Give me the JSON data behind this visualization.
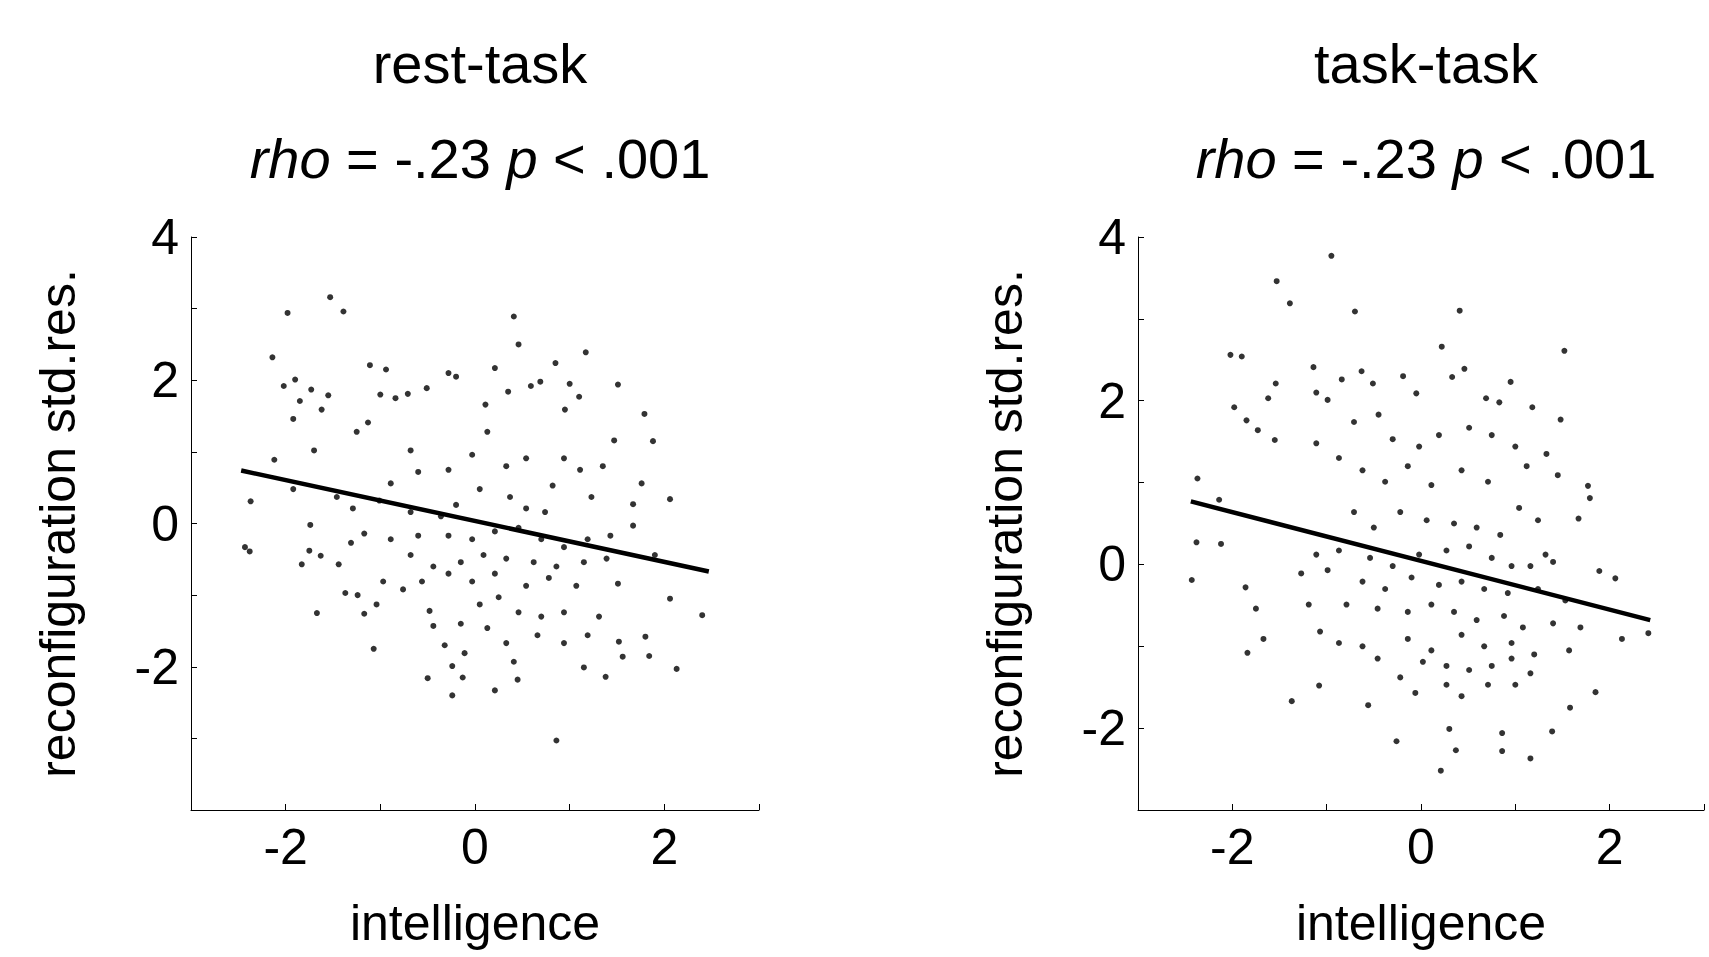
{
  "chart_data": [
    {
      "type": "scatter",
      "title": "rest-task",
      "subtitle": "rho = -.23 p < .001",
      "xlabel": "intelligence",
      "ylabel": "reconfiguration std.res.",
      "marker": "circle",
      "xlim": [
        -3,
        3
      ],
      "xticks": [
        {
          "value": -3,
          "label": null
        },
        -2,
        {
          "value": -1,
          "label": null
        },
        0,
        {
          "value": 1,
          "label": null
        },
        2,
        {
          "value": 3,
          "label": null
        }
      ],
      "ylim": [
        -4,
        4
      ],
      "yticks": [
        {
          "value": -4,
          "label": null
        },
        {
          "value": -3,
          "label": null
        },
        -2,
        {
          "value": -1,
          "label": null
        },
        0,
        {
          "value": 1,
          "label": null
        },
        2,
        {
          "value": 3,
          "label": null
        },
        4
      ],
      "series": [
        {
          "color": "#000000",
          "x": [
            -1.53,
            -1.98,
            -1.39,
            0.41,
            0.46,
            -2.14,
            1.17,
            0.85,
            -1.11,
            -0.94,
            -2.02,
            -1.9,
            -1.85,
            -1.73,
            -1.55,
            -1.62,
            -1.92,
            -2.12,
            -2.37,
            -2.43,
            -2.38,
            -1.92,
            -1.7,
            -1.74,
            -1.75,
            -1.83,
            -1.67,
            -1.63,
            -1.44,
            -1.37,
            -1.24,
            -1.07,
            -1.17,
            -1.04,
            -0.5,
            -0.24,
            -0.13,
            -0.24,
            0.21,
            0.86,
            0.41,
            0.45,
            1.15,
            1.38,
            2.13,
            2.4,
            2.06,
            2.06,
            1.88,
            1.79,
            1.51,
            1.47,
            1.84,
            1.8,
            1.56,
            1.52,
            1.9,
            1.76,
            1.67,
            1.67,
            1.0,
            1.1,
            0.95,
            0.59,
            0.69,
            0.35,
            0.21,
            0.11,
            -0.2,
            -0.28,
            -0.51,
            -0.71,
            -1.0,
            -1.25,
            -1.13,
            -0.68,
            -0.84,
            -0.89,
            -0.6,
            -0.28,
            -0.03,
            0.13,
            0.33,
            0.54,
            0.82,
            0.94,
            1.11,
            1.35,
            1.23,
            -0.2,
            0.05,
            0.37,
            0.54,
            0.74,
            -0.36,
            -0.68,
            -1.01,
            -1.29,
            -1.17,
            -0.89,
            -0.6,
            -0.28,
            -0.03,
            0.21,
            0.46,
            0.7,
            0.94,
            1.19,
            1.43,
            -0.68,
            -0.44,
            -0.15,
            0.09,
            0.33,
            0.62,
            0.86,
            1.15,
            1.39,
            -0.56,
            -0.28,
            -0.03,
            0.21,
            0.54,
            0.78,
            1.07,
            1.51,
            -0.48,
            -0.15,
            0.05,
            0.25,
            0.46,
            0.7,
            0.94,
            1.31,
            -0.44,
            0.13,
            0.33,
            0.66,
            0.94,
            1.19,
            -0.32,
            -0.11,
            -0.76,
            -0.97,
            -1.31,
            -1.46
          ],
          "values": [
            3.16,
            2.94,
            2.96,
            2.89,
            2.5,
            2.32,
            2.39,
            2.24,
            2.21,
            2.15,
            1.92,
            2.01,
            1.71,
            1.87,
            1.79,
            1.59,
            1.46,
            0.89,
            0.31,
            -0.33,
            -0.39,
            0.48,
            1.02,
            -0.02,
            -0.38,
            -0.57,
            -1.25,
            -0.45,
            -0.57,
            -0.97,
            -1.0,
            -1.75,
            -1.26,
            -1.13,
            -2.16,
            -2.4,
            -2.15,
            -1.99,
            -2.33,
            -3.03,
            -1.93,
            -2.18,
            -2.01,
            -2.14,
            -2.03,
            -1.28,
            -1.05,
            0.34,
            1.15,
            1.53,
            1.94,
            1.16,
            -1.85,
            -1.58,
            -1.86,
            -1.65,
            -0.44,
            0.56,
            0.27,
            -0.03,
            1.95,
            1.77,
            1.59,
            1.92,
            1.98,
            1.84,
            2.17,
            1.66,
            2.05,
            2.1,
            1.89,
            1.81,
            1.8,
            1.28,
            1.41,
            1.02,
            1.75,
            0.56,
            0.72,
            0.75,
            0.96,
            1.28,
            0.8,
            0.91,
            0.53,
            0.91,
            0.75,
            0.8,
            0.37,
            0.26,
            0.48,
            0.37,
            0.21,
            0.16,
            0.1,
            0.16,
            0.32,
            0.21,
            -0.14,
            -0.22,
            -0.17,
            -0.17,
            -0.22,
            -0.11,
            -0.06,
            -0.22,
            -0.33,
            -0.22,
            -0.17,
            -0.44,
            -0.6,
            -0.54,
            -0.44,
            -0.49,
            -0.54,
            -0.6,
            -0.54,
            -0.49,
            -0.81,
            -0.7,
            -0.81,
            -0.7,
            -0.87,
            -0.76,
            -0.87,
            -0.84,
            -1.22,
            -1.4,
            -1.13,
            -1.03,
            -1.24,
            -1.3,
            -1.24,
            -1.3,
            -1.43,
            -1.46,
            -1.67,
            -1.56,
            -1.67,
            -1.56,
            -1.7,
            -1.81,
            -0.92,
            -0.81,
            -0.27,
            0.37
          ]
        },
        {
          "type": "line",
          "marker": "none",
          "color": "#000000",
          "x": [
            -2.47,
            2.47
          ],
          "values": [
            0.74,
            -0.67
          ]
        }
      ]
    },
    {
      "type": "scatter",
      "title": "task-task",
      "subtitle": "rho = -.23 p < .001",
      "xlabel": "intelligence",
      "ylabel": "reconfiguration std.res.",
      "marker": "circle",
      "xlim": [
        -3,
        3
      ],
      "xticks": [
        {
          "value": -3,
          "label": null
        },
        -2,
        {
          "value": -1,
          "label": null
        },
        0,
        {
          "value": 1,
          "label": null
        },
        2,
        {
          "value": 3,
          "label": null
        }
      ],
      "ylim": [
        -3,
        4
      ],
      "yticks": [
        {
          "value": -3,
          "label": null
        },
        -2,
        {
          "value": -1,
          "label": null
        },
        0,
        {
          "value": 1,
          "label": null
        },
        2,
        {
          "value": 3,
          "label": null
        },
        4
      ],
      "series": [
        {
          "color": "#000000",
          "x": [
            -0.95,
            -1.53,
            -1.39,
            -0.7,
            0.41,
            0.22,
            1.52,
            -2.02,
            -1.9,
            -1.14,
            -1.54,
            -1.62,
            -1.98,
            -1.85,
            -1.73,
            -1.55,
            -2.37,
            -2.14,
            -2.38,
            -2.12,
            -2.43,
            -1.86,
            -1.75,
            -1.67,
            -1.84,
            -1.37,
            -1.08,
            -0.56,
            -0.26,
            0.21,
            0.3,
            0.37,
            0.86,
            0.86,
            1.16,
            1.39,
            1.58,
            1.85,
            2.13,
            2.41,
            2.06,
            1.89,
            1.79,
            1.77,
            1.67,
            1.48,
            1.45,
            1.33,
            1.18,
            0.95,
            0.69,
            0.83,
            0.46,
            0.33,
            -0.19,
            -0.05,
            -0.51,
            -0.63,
            -0.84,
            -1.11,
            -0.99,
            -0.45,
            -0.71,
            -1.11,
            -0.87,
            -0.62,
            -0.3,
            -0.02,
            0.19,
            0.51,
            0.75,
            1.0,
            1.12,
            -0.38,
            -0.14,
            0.11,
            0.43,
            0.71,
            1.04,
            1.24,
            -0.71,
            -0.5,
            -0.22,
            0.06,
            0.35,
            0.59,
            0.84,
            1.32,
            -1.11,
            -0.87,
            -0.54,
            -0.3,
            -0.02,
            0.27,
            0.51,
            0.75,
            0.96,
            1.16,
            1.4,
            -1.27,
            -0.99,
            -0.62,
            -0.38,
            -0.1,
            0.19,
            0.43,
            0.67,
            0.92,
            1.24,
            1.53,
            -1.19,
            -0.79,
            -0.46,
            -0.14,
            0.11,
            0.35,
            0.59,
            0.88,
            1.08,
            1.4,
            1.69,
            -1.07,
            -0.62,
            -0.14,
            0.11,
            0.43,
            0.67,
            0.96,
            1.2,
            1.57,
            -0.46,
            -0.22,
            0.02,
            0.27,
            0.51,
            0.75,
            0.96,
            1.16,
            0.27,
            0.43,
            0.71,
            1.0,
            -0.06,
            -0.87
          ],
          "values": [
            3.77,
            3.46,
            3.19,
            3.09,
            3.1,
            2.66,
            2.61,
            2.56,
            2.54,
            2.41,
            2.21,
            2.03,
            1.92,
            1.76,
            1.64,
            1.52,
            1.05,
            0.79,
            0.27,
            0.25,
            -0.19,
            -0.28,
            -0.54,
            -0.91,
            -1.08,
            -1.67,
            -1.48,
            -1.72,
            -2.16,
            -2.52,
            -2.01,
            -2.27,
            -2.06,
            -2.28,
            -2.37,
            -2.04,
            -1.75,
            -1.56,
            -0.91,
            -0.84,
            -0.17,
            -0.08,
            0.81,
            0.96,
            0.56,
            1.77,
            1.09,
            1.35,
            1.92,
            2.23,
            2.03,
            1.98,
            2.39,
            2.29,
            2.3,
            2.09,
            2.21,
            2.36,
            2.26,
            2.1,
            2.01,
            1.83,
            1.74,
            1.48,
            1.3,
            1.15,
            1.53,
            1.44,
            1.58,
            1.67,
            1.58,
            1.44,
            1.2,
            1.01,
            1.2,
            0.97,
            1.15,
            1.01,
            0.69,
            0.54,
            0.64,
            0.45,
            0.64,
            0.54,
            0.5,
            0.45,
            0.36,
            0.12,
            0.12,
            0.17,
            0.08,
            -0.02,
            0.12,
            0.17,
            0.22,
            0.08,
            -0.02,
            -0.02,
            0.03,
            -0.11,
            -0.07,
            -0.21,
            -0.3,
            -0.16,
            -0.25,
            -0.21,
            -0.3,
            -0.35,
            -0.3,
            -0.44,
            -0.49,
            -0.49,
            -0.54,
            -0.58,
            -0.49,
            -0.58,
            -0.68,
            -0.63,
            -0.77,
            -0.72,
            -0.77,
            -0.82,
            -1.0,
            -0.91,
            -1.05,
            -0.86,
            -1.0,
            -0.96,
            -1.1,
            -1.05,
            -1.15,
            -1.38,
            -1.19,
            -1.24,
            -1.29,
            -1.24,
            -1.15,
            -1.33,
            -1.47,
            -1.61,
            -1.47,
            -1.47,
            -1.57,
            -0.96
          ]
        },
        {
          "type": "line",
          "marker": "none",
          "color": "#000000",
          "x": [
            -2.44,
            2.43
          ],
          "values": [
            0.77,
            -0.68
          ]
        }
      ]
    }
  ]
}
